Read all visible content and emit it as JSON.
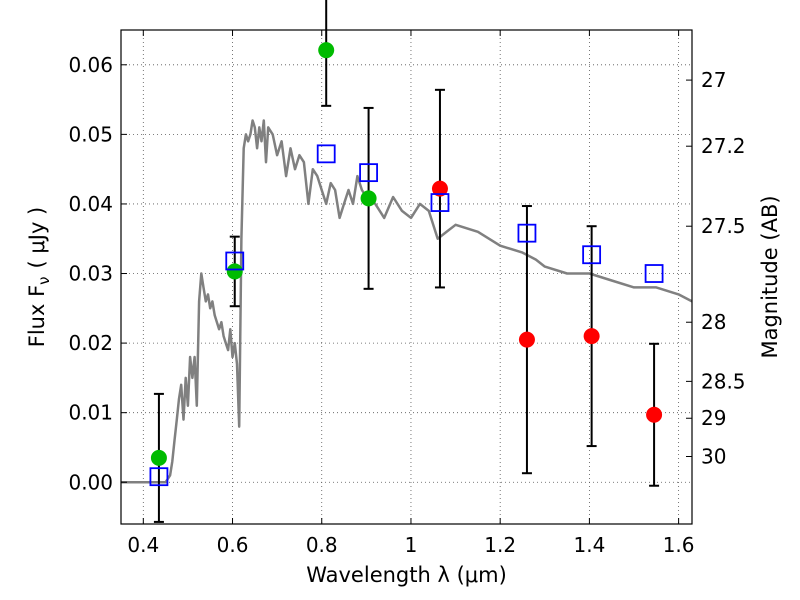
{
  "chart_data": {
    "type": "scatter",
    "title": "",
    "xlabel": "Wavelength  λ (μm)",
    "ylabel_main": "Flux  F",
    "ylabel_sub": "ν",
    "ylabel_unit": "( μJy )",
    "y2label": "Magnitude (AB)",
    "xlim": [
      0.35,
      1.63
    ],
    "ylim": [
      -0.006,
      0.065
    ],
    "grid": true,
    "x_ticks": [
      0.4,
      0.6,
      0.8,
      1.0,
      1.2,
      1.4,
      1.6
    ],
    "x_tick_labels": [
      "0.4",
      "0.6",
      "0.8",
      "1",
      "1.2",
      "1.4",
      "1.6"
    ],
    "y_ticks": [
      0.0,
      0.01,
      0.02,
      0.03,
      0.04,
      0.05,
      0.06
    ],
    "y_tick_labels": [
      "0.00",
      "0.01",
      "0.02",
      "0.03",
      "0.04",
      "0.05",
      "0.06"
    ],
    "y2_ticks": [
      {
        "label": "27",
        "flux": 0.0578
      },
      {
        "label": "27.2",
        "flux": 0.0483
      },
      {
        "label": "27.5",
        "flux": 0.0368
      },
      {
        "label": "28",
        "flux": 0.023
      },
      {
        "label": "28.5",
        "flux": 0.0145
      },
      {
        "label": "29",
        "flux": 0.0092
      },
      {
        "label": "30",
        "flux": 0.0037
      }
    ],
    "colors": {
      "model": "#808080",
      "green": "#00bb00",
      "red": "#ff0000",
      "blue": "#0000ff",
      "error": "#000000",
      "grid": "#555555"
    },
    "model_spectrum": {
      "x": [
        0.35,
        0.45,
        0.455,
        0.46,
        0.465,
        0.47,
        0.475,
        0.48,
        0.485,
        0.49,
        0.495,
        0.5,
        0.505,
        0.51,
        0.515,
        0.52,
        0.525,
        0.53,
        0.535,
        0.54,
        0.545,
        0.55,
        0.555,
        0.56,
        0.565,
        0.57,
        0.575,
        0.58,
        0.585,
        0.59,
        0.595,
        0.6,
        0.605,
        0.61,
        0.615,
        0.62,
        0.625,
        0.63,
        0.635,
        0.64,
        0.645,
        0.65,
        0.655,
        0.66,
        0.665,
        0.67,
        0.675,
        0.68,
        0.69,
        0.7,
        0.71,
        0.72,
        0.73,
        0.74,
        0.75,
        0.76,
        0.77,
        0.78,
        0.79,
        0.8,
        0.81,
        0.82,
        0.83,
        0.84,
        0.85,
        0.86,
        0.87,
        0.88,
        0.89,
        0.9,
        0.92,
        0.94,
        0.96,
        0.98,
        1.0,
        1.02,
        1.04,
        1.06,
        1.08,
        1.1,
        1.15,
        1.2,
        1.25,
        1.28,
        1.3,
        1.35,
        1.4,
        1.45,
        1.5,
        1.55,
        1.6,
        1.63
      ],
      "y": [
        0.0,
        0.0,
        0.0005,
        0.001,
        0.003,
        0.006,
        0.009,
        0.012,
        0.014,
        0.009,
        0.015,
        0.011,
        0.018,
        0.015,
        0.018,
        0.011,
        0.026,
        0.03,
        0.028,
        0.026,
        0.027,
        0.025,
        0.026,
        0.024,
        0.023,
        0.022,
        0.023,
        0.021,
        0.02,
        0.019,
        0.022,
        0.018,
        0.02,
        0.017,
        0.008,
        0.035,
        0.048,
        0.05,
        0.049,
        0.05,
        0.052,
        0.051,
        0.048,
        0.051,
        0.049,
        0.052,
        0.046,
        0.051,
        0.05,
        0.047,
        0.049,
        0.044,
        0.048,
        0.045,
        0.047,
        0.046,
        0.04,
        0.045,
        0.044,
        0.042,
        0.04,
        0.043,
        0.042,
        0.038,
        0.04,
        0.042,
        0.04,
        0.044,
        0.042,
        0.041,
        0.04,
        0.038,
        0.041,
        0.039,
        0.038,
        0.04,
        0.039,
        0.035,
        0.036,
        0.037,
        0.036,
        0.034,
        0.033,
        0.032,
        0.031,
        0.03,
        0.03,
        0.029,
        0.028,
        0.028,
        0.027,
        0.026
      ]
    },
    "series": [
      {
        "color": "green",
        "marker": "circle",
        "points": [
          {
            "x": 0.435,
            "y": 0.0035,
            "err": 0.0092
          },
          {
            "x": 0.605,
            "y": 0.0303,
            "err": 0.005
          },
          {
            "x": 0.81,
            "y": 0.0621,
            "err": 0.008
          },
          {
            "x": 0.905,
            "y": 0.0408,
            "err": 0.013
          }
        ]
      },
      {
        "color": "red",
        "marker": "circle",
        "points": [
          {
            "x": 1.065,
            "y": 0.0422,
            "err": 0.0142
          },
          {
            "x": 1.26,
            "y": 0.0205,
            "err": 0.0192
          },
          {
            "x": 1.405,
            "y": 0.021,
            "err": 0.0158
          },
          {
            "x": 1.545,
            "y": 0.0097,
            "err": 0.0102
          }
        ]
      },
      {
        "color": "blue",
        "marker": "open-square",
        "points": [
          {
            "x": 0.435,
            "y": 0.0008
          },
          {
            "x": 0.605,
            "y": 0.0318
          },
          {
            "x": 0.81,
            "y": 0.0472
          },
          {
            "x": 0.905,
            "y": 0.0445
          },
          {
            "x": 1.065,
            "y": 0.0402
          },
          {
            "x": 1.26,
            "y": 0.0358
          },
          {
            "x": 1.405,
            "y": 0.0327
          },
          {
            "x": 1.545,
            "y": 0.03
          }
        ]
      }
    ]
  }
}
